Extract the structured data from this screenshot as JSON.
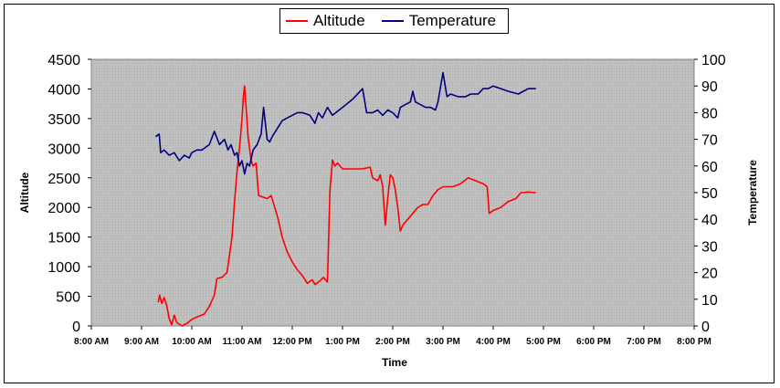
{
  "colors": {
    "altitude": "#ff0000",
    "temperature": "#000080",
    "plot_bg": "#c0c0c0"
  },
  "chart_data": {
    "type": "line",
    "xlabel": "Time",
    "ylabel_left": "Altitude",
    "ylabel_right": "Temperature",
    "legend_position": "top-center",
    "grid": false,
    "x_range_hours": [
      8,
      20
    ],
    "x_ticks": [
      "8:00 AM",
      "9:00 AM",
      "10:00 AM",
      "11:00 AM",
      "12:00 PM",
      "1:00 PM",
      "2:00 PM",
      "3:00 PM",
      "4:00 PM",
      "5:00 PM",
      "6:00 PM",
      "7:00 PM",
      "8:00 PM"
    ],
    "y_left": {
      "range": [
        0,
        4500
      ],
      "ticks": [
        "0",
        "500",
        "1000",
        "1500",
        "2000",
        "2500",
        "3000",
        "3500",
        "4000",
        "4500"
      ]
    },
    "y_right": {
      "range": [
        0,
        100
      ],
      "ticks": [
        "0",
        "10",
        "20",
        "30",
        "40",
        "50",
        "60",
        "70",
        "80",
        "90",
        "100"
      ]
    },
    "series": [
      {
        "name": "Altitude",
        "axis": "left",
        "color": "#ff0000",
        "points": [
          [
            9.33,
            400
          ],
          [
            9.36,
            520
          ],
          [
            9.4,
            380
          ],
          [
            9.45,
            480
          ],
          [
            9.5,
            350
          ],
          [
            9.55,
            120
          ],
          [
            9.6,
            20
          ],
          [
            9.65,
            180
          ],
          [
            9.7,
            60
          ],
          [
            9.8,
            0
          ],
          [
            9.9,
            40
          ],
          [
            10.0,
            110
          ],
          [
            10.1,
            150
          ],
          [
            10.25,
            200
          ],
          [
            10.35,
            330
          ],
          [
            10.45,
            520
          ],
          [
            10.5,
            800
          ],
          [
            10.6,
            820
          ],
          [
            10.7,
            900
          ],
          [
            10.75,
            1200
          ],
          [
            10.8,
            1500
          ],
          [
            10.85,
            2100
          ],
          [
            10.9,
            2600
          ],
          [
            10.95,
            3000
          ],
          [
            11.0,
            3500
          ],
          [
            11.03,
            3900
          ],
          [
            11.05,
            4050
          ],
          [
            11.08,
            3700
          ],
          [
            11.12,
            3200
          ],
          [
            11.18,
            2800
          ],
          [
            11.22,
            2700
          ],
          [
            11.28,
            2750
          ],
          [
            11.33,
            2200
          ],
          [
            11.5,
            2150
          ],
          [
            11.58,
            2200
          ],
          [
            11.65,
            2000
          ],
          [
            11.72,
            1800
          ],
          [
            11.8,
            1500
          ],
          [
            11.9,
            1250
          ],
          [
            12.0,
            1080
          ],
          [
            12.1,
            950
          ],
          [
            12.2,
            850
          ],
          [
            12.3,
            720
          ],
          [
            12.4,
            780
          ],
          [
            12.45,
            700
          ],
          [
            12.55,
            760
          ],
          [
            12.62,
            820
          ],
          [
            12.7,
            740
          ],
          [
            12.75,
            2300
          ],
          [
            12.8,
            2800
          ],
          [
            12.85,
            2700
          ],
          [
            12.9,
            2750
          ],
          [
            13.0,
            2650
          ],
          [
            13.2,
            2650
          ],
          [
            13.4,
            2650
          ],
          [
            13.55,
            2680
          ],
          [
            13.6,
            2500
          ],
          [
            13.7,
            2450
          ],
          [
            13.75,
            2550
          ],
          [
            13.8,
            2350
          ],
          [
            13.85,
            1700
          ],
          [
            13.9,
            2150
          ],
          [
            13.95,
            2550
          ],
          [
            14.0,
            2500
          ],
          [
            14.05,
            2300
          ],
          [
            14.1,
            2000
          ],
          [
            14.15,
            1600
          ],
          [
            14.2,
            1700
          ],
          [
            14.3,
            1800
          ],
          [
            14.4,
            1900
          ],
          [
            14.5,
            2000
          ],
          [
            14.6,
            2050
          ],
          [
            14.7,
            2050
          ],
          [
            14.8,
            2200
          ],
          [
            14.9,
            2300
          ],
          [
            15.0,
            2350
          ],
          [
            15.2,
            2350
          ],
          [
            15.35,
            2400
          ],
          [
            15.5,
            2500
          ],
          [
            15.65,
            2450
          ],
          [
            15.8,
            2400
          ],
          [
            15.88,
            2350
          ],
          [
            15.92,
            1900
          ],
          [
            16.0,
            1950
          ],
          [
            16.15,
            2000
          ],
          [
            16.3,
            2100
          ],
          [
            16.45,
            2150
          ],
          [
            16.55,
            2250
          ],
          [
            16.7,
            2260
          ],
          [
            16.85,
            2250
          ]
        ]
      },
      {
        "name": "Temperature",
        "axis": "right",
        "color": "#000080",
        "points": [
          [
            9.28,
            71
          ],
          [
            9.35,
            72
          ],
          [
            9.38,
            65
          ],
          [
            9.45,
            66
          ],
          [
            9.55,
            64
          ],
          [
            9.65,
            65
          ],
          [
            9.75,
            62
          ],
          [
            9.85,
            64
          ],
          [
            9.95,
            63
          ],
          [
            10.0,
            65
          ],
          [
            10.1,
            66
          ],
          [
            10.2,
            66
          ],
          [
            10.35,
            68
          ],
          [
            10.45,
            73
          ],
          [
            10.55,
            68
          ],
          [
            10.65,
            70
          ],
          [
            10.72,
            66
          ],
          [
            10.78,
            68
          ],
          [
            10.85,
            64
          ],
          [
            10.9,
            65
          ],
          [
            10.95,
            60
          ],
          [
            11.0,
            62
          ],
          [
            11.05,
            57
          ],
          [
            11.1,
            61
          ],
          [
            11.15,
            60
          ],
          [
            11.22,
            66
          ],
          [
            11.3,
            68
          ],
          [
            11.38,
            72
          ],
          [
            11.43,
            82
          ],
          [
            11.5,
            70
          ],
          [
            11.55,
            69
          ],
          [
            11.6,
            71
          ],
          [
            11.7,
            74
          ],
          [
            11.8,
            77
          ],
          [
            11.9,
            78
          ],
          [
            12.0,
            79
          ],
          [
            12.1,
            80
          ],
          [
            12.2,
            80
          ],
          [
            12.35,
            79
          ],
          [
            12.45,
            76
          ],
          [
            12.52,
            80
          ],
          [
            12.6,
            78
          ],
          [
            12.7,
            82
          ],
          [
            12.8,
            79
          ],
          [
            13.0,
            82
          ],
          [
            13.2,
            85
          ],
          [
            13.4,
            89
          ],
          [
            13.48,
            80
          ],
          [
            13.6,
            80
          ],
          [
            13.7,
            81
          ],
          [
            13.8,
            79
          ],
          [
            13.9,
            81
          ],
          [
            14.0,
            80
          ],
          [
            14.1,
            78
          ],
          [
            14.15,
            82
          ],
          [
            14.25,
            83
          ],
          [
            14.35,
            84
          ],
          [
            14.4,
            88
          ],
          [
            14.45,
            84
          ],
          [
            14.55,
            83
          ],
          [
            14.65,
            82
          ],
          [
            14.75,
            82
          ],
          [
            14.85,
            81
          ],
          [
            14.9,
            84
          ],
          [
            15.0,
            95
          ],
          [
            15.08,
            86
          ],
          [
            15.15,
            87
          ],
          [
            15.3,
            86
          ],
          [
            15.45,
            86
          ],
          [
            15.55,
            87
          ],
          [
            15.7,
            87
          ],
          [
            15.8,
            89
          ],
          [
            15.9,
            89
          ],
          [
            16.0,
            90
          ],
          [
            16.15,
            89
          ],
          [
            16.3,
            88
          ],
          [
            16.5,
            87
          ],
          [
            16.6,
            88
          ],
          [
            16.7,
            89
          ],
          [
            16.85,
            89
          ]
        ]
      }
    ]
  }
}
